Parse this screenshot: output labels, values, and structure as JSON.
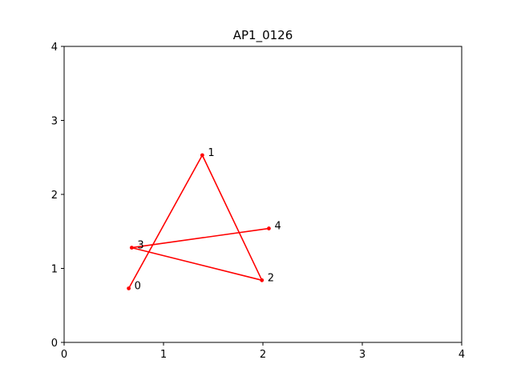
{
  "chart_data": {
    "type": "line",
    "title": "AP1_0126",
    "xlabel": "",
    "ylabel": "",
    "xlim": [
      0,
      4
    ],
    "ylim": [
      0,
      4
    ],
    "x_ticks": [
      "0",
      "1",
      "2",
      "3",
      "4"
    ],
    "y_ticks": [
      "0",
      "1",
      "2",
      "3",
      "4"
    ],
    "grid": false,
    "series": [
      {
        "color": "#ff0000",
        "marker": "circle",
        "points": [
          {
            "label": "0",
            "x": 0.65,
            "y": 0.73
          },
          {
            "label": "1",
            "x": 1.39,
            "y": 2.53
          },
          {
            "label": "2",
            "x": 1.99,
            "y": 0.84
          },
          {
            "label": "3",
            "x": 0.68,
            "y": 1.28
          },
          {
            "label": "4",
            "x": 2.06,
            "y": 1.54
          }
        ]
      }
    ]
  }
}
